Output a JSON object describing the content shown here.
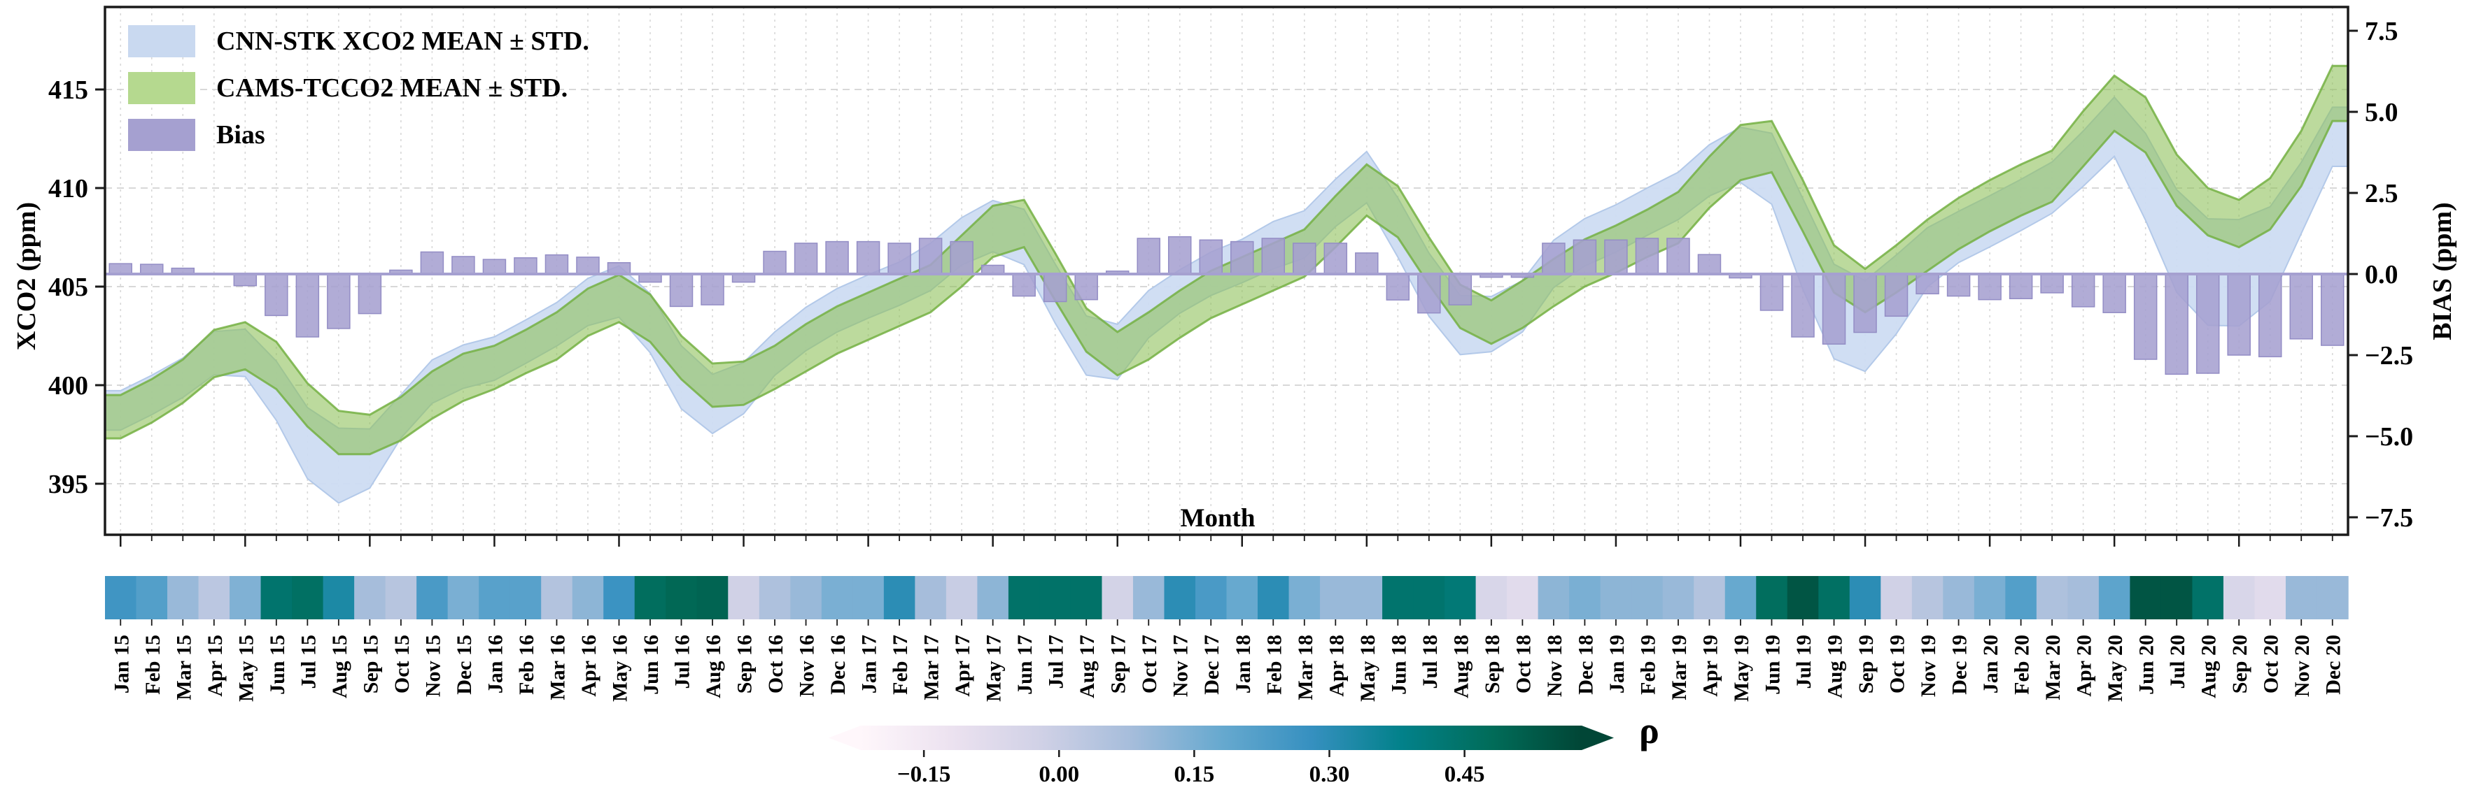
{
  "legend": {
    "items": [
      {
        "label": "CNN-STK XCO2 MEAN ± STD.",
        "swatch": "legend_cnn"
      },
      {
        "label": "CAMS-TCCO2 MEAN ± STD.",
        "swatch": "legend_cams"
      },
      {
        "label": "Bias",
        "swatch": "legend_bias"
      }
    ]
  },
  "chart_data": {
    "type": "area",
    "title": "",
    "xlabel": "Month",
    "ylabel_left": "XCO2 (ppm)",
    "ylabel_right": "BIAS (ppm)",
    "ylim_left": [
      392.4,
      419.2
    ],
    "ylim_right": [
      -8.0,
      8.2
    ],
    "grid": true,
    "legend_position": "upper left",
    "months": [
      "Jan 15",
      "Feb 15",
      "Mar 15",
      "Apr 15",
      "May 15",
      "Jun 15",
      "Jul 15",
      "Aug 15",
      "Sep 15",
      "Oct 15",
      "Nov 15",
      "Dec 15",
      "Jan 16",
      "Feb 16",
      "Mar 16",
      "Apr 16",
      "May 16",
      "Jun 16",
      "Jul 16",
      "Aug 16",
      "Sep 16",
      "Oct 16",
      "Nov 16",
      "Dec 16",
      "Jan 17",
      "Feb 17",
      "Mar 17",
      "Apr 17",
      "May 17",
      "Jun 17",
      "Jul 17",
      "Aug 17",
      "Sep 17",
      "Oct 17",
      "Nov 17",
      "Dec 17",
      "Jan 18",
      "Feb 18",
      "Mar 18",
      "Apr 18",
      "May 18",
      "Jun 18",
      "Jul 18",
      "Aug 18",
      "Sep 18",
      "Oct 18",
      "Nov 18",
      "Dec 18",
      "Jan 19",
      "Feb 19",
      "Mar 19",
      "Apr 19",
      "May 19",
      "Jun 19",
      "Jul 19",
      "Aug 19",
      "Sep 19",
      "Oct 19",
      "Nov 19",
      "Dec 19",
      "Jan 20",
      "Feb 20",
      "Mar 20",
      "Apr 20",
      "May 20",
      "Jun 20",
      "Jul 20",
      "Aug 20",
      "Sep 20",
      "Oct 20",
      "Nov 20",
      "Dec 20"
    ],
    "series": [
      {
        "name": "CNN-STK XCO2 MEAN ± STD.",
        "mean": [
          398.72,
          399.5,
          400.38,
          401.62,
          401.64,
          399.72,
          397.06,
          395.92,
          396.28,
          398.42,
          400.18,
          400.94,
          401.35,
          402.2,
          403.09,
          404.22,
          404.75,
          403.15,
          400.4,
          399.05,
          399.85,
          401.6,
          402.85,
          403.8,
          404.5,
          405.15,
          406.0,
          407.3,
          408.07,
          407.52,
          404.65,
          402.01,
          401.69,
          403.6,
          404.75,
          405.65,
          406.3,
          407.1,
          407.65,
          409.25,
          410.55,
          408.0,
          405.1,
          403.05,
          403.1,
          404.0,
          406.15,
          407.25,
          407.95,
          408.8,
          409.6,
          410.9,
          411.68,
          410.98,
          407.16,
          403.74,
          403.0,
          404.6,
          406.49,
          407.52,
          408.31,
          409.14,
          410.02,
          411.49,
          413.11,
          410.57,
          407.31,
          405.74,
          405.7,
          406.65,
          409.5,
          412.6
        ],
        "std": [
          1.0,
          1.0,
          1.0,
          1.1,
          1.2,
          1.5,
          1.8,
          1.9,
          1.5,
          1.1,
          1.1,
          1.1,
          1.1,
          1.1,
          1.1,
          1.2,
          1.3,
          1.5,
          1.6,
          1.5,
          1.3,
          1.1,
          1.1,
          1.1,
          1.1,
          1.1,
          1.2,
          1.2,
          1.3,
          1.4,
          1.5,
          1.5,
          1.4,
          1.2,
          1.1,
          1.1,
          1.1,
          1.2,
          1.2,
          1.2,
          1.3,
          1.5,
          1.6,
          1.5,
          1.4,
          1.3,
          1.2,
          1.2,
          1.2,
          1.2,
          1.2,
          1.3,
          1.4,
          1.8,
          2.3,
          2.4,
          2.3,
          2.0,
          1.5,
          1.3,
          1.3,
          1.3,
          1.3,
          1.4,
          1.5,
          2.2,
          2.6,
          2.7,
          2.7,
          2.4,
          1.8,
          1.5
        ]
      },
      {
        "name": "CAMS-TCCO2 MEAN ± STD.",
        "mean": [
          398.4,
          399.2,
          400.2,
          401.6,
          402.0,
          401.0,
          399.0,
          397.6,
          397.5,
          398.3,
          399.5,
          400.4,
          400.9,
          401.7,
          402.5,
          403.7,
          404.4,
          403.4,
          401.4,
          400.0,
          400.1,
          400.9,
          401.9,
          402.8,
          403.5,
          404.2,
          404.9,
          406.3,
          407.8,
          408.2,
          405.5,
          402.8,
          401.6,
          402.5,
          403.6,
          404.6,
          405.3,
          406.0,
          406.7,
          408.3,
          409.9,
          408.8,
          406.3,
          404.0,
          403.2,
          404.1,
          405.2,
          406.2,
          406.9,
          407.7,
          408.5,
          410.3,
          411.8,
          412.1,
          409.1,
          405.9,
          404.8,
          405.9,
          407.1,
          408.2,
          409.1,
          409.9,
          410.6,
          412.5,
          414.3,
          413.2,
          410.4,
          408.8,
          408.2,
          409.2,
          411.5,
          414.8
        ],
        "std": [
          1.1,
          1.1,
          1.1,
          1.2,
          1.2,
          1.2,
          1.1,
          1.1,
          1.0,
          1.1,
          1.2,
          1.2,
          1.1,
          1.1,
          1.2,
          1.2,
          1.2,
          1.2,
          1.1,
          1.1,
          1.1,
          1.1,
          1.2,
          1.2,
          1.2,
          1.2,
          1.2,
          1.3,
          1.3,
          1.2,
          1.2,
          1.1,
          1.1,
          1.2,
          1.2,
          1.2,
          1.2,
          1.2,
          1.2,
          1.3,
          1.3,
          1.3,
          1.2,
          1.1,
          1.1,
          1.2,
          1.2,
          1.2,
          1.2,
          1.2,
          1.3,
          1.3,
          1.4,
          1.3,
          1.3,
          1.2,
          1.1,
          1.2,
          1.3,
          1.3,
          1.3,
          1.3,
          1.3,
          1.4,
          1.4,
          1.4,
          1.3,
          1.2,
          1.2,
          1.3,
          1.4,
          1.4
        ]
      },
      {
        "name": "Bias",
        "values": [
          0.32,
          0.3,
          0.18,
          0.02,
          -0.36,
          -1.28,
          -1.94,
          -1.68,
          -1.22,
          0.12,
          0.68,
          0.54,
          0.45,
          0.5,
          0.59,
          0.52,
          0.35,
          -0.25,
          -1.0,
          -0.95,
          -0.25,
          0.7,
          0.95,
          1.0,
          1.0,
          0.95,
          1.1,
          1.0,
          0.27,
          -0.68,
          -0.85,
          -0.79,
          0.09,
          1.1,
          1.15,
          1.05,
          1.0,
          1.1,
          0.95,
          0.95,
          0.65,
          -0.8,
          -1.2,
          -0.95,
          -0.1,
          -0.1,
          0.95,
          1.05,
          1.05,
          1.1,
          1.1,
          0.6,
          -0.12,
          -1.12,
          -1.94,
          -2.16,
          -1.8,
          -1.3,
          -0.61,
          -0.68,
          -0.79,
          -0.76,
          -0.58,
          -1.01,
          -1.19,
          -2.63,
          -3.09,
          -3.06,
          -2.5,
          -2.55,
          -2.0,
          -2.2
        ]
      }
    ],
    "axes": {
      "y_left": {
        "tick_labels": [
          "415",
          "410",
          "405",
          "400",
          "395"
        ],
        "tick_values": [
          415,
          410,
          405,
          400,
          395
        ]
      },
      "y_right": {
        "tick_labels": [
          "7.5",
          "5.0",
          "2.5",
          "0.0",
          "−2.5",
          "−5.0",
          "−7.5"
        ],
        "tick_values": [
          7.5,
          5.0,
          2.5,
          0.0,
          -2.5,
          -5.0,
          -7.5
        ]
      }
    },
    "rho": {
      "label": "ρ",
      "values": [
        0.26,
        0.22,
        0.1,
        0.03,
        0.14,
        0.44,
        0.46,
        0.33,
        0.08,
        0.04,
        0.24,
        0.15,
        0.21,
        0.21,
        0.05,
        0.12,
        0.27,
        0.47,
        0.49,
        0.5,
        -0.02,
        0.06,
        0.1,
        0.15,
        0.15,
        0.3,
        0.08,
        0.0,
        0.12,
        0.45,
        0.45,
        0.45,
        -0.03,
        0.1,
        0.3,
        0.24,
        0.18,
        0.3,
        0.15,
        0.1,
        0.1,
        0.44,
        0.44,
        0.42,
        -0.05,
        -0.08,
        0.12,
        0.15,
        0.12,
        0.12,
        0.1,
        0.05,
        0.18,
        0.47,
        0.54,
        0.46,
        0.3,
        -0.02,
        0.04,
        0.1,
        0.15,
        0.22,
        0.06,
        0.08,
        0.2,
        0.54,
        0.54,
        0.45,
        -0.05,
        -0.08,
        0.1,
        0.1
      ],
      "vmin": -0.22,
      "vmax": 0.58,
      "colormap": [
        "#fff7fb",
        "#ece2f0",
        "#d0d1e6",
        "#a6bddb",
        "#67a9cf",
        "#3690c0",
        "#02818a",
        "#016c59",
        "#014636"
      ],
      "tick_labels": [
        "−0.15",
        "0.00",
        "0.15",
        "0.30",
        "0.45"
      ],
      "tick_values": [
        -0.15,
        0.0,
        0.15,
        0.3,
        0.45
      ]
    },
    "colors": {
      "cnn_fill": "#cedcf2",
      "cnn_edge": "#b3c9e9",
      "cams_fill": "#8fc25c",
      "cams_edge": "#74b043",
      "bias_fill": "#a5a0d0",
      "bias_edge": "#938dc5",
      "legend_cnn": "#c9d9f0",
      "legend_cams": "#b5d98f",
      "legend_bias": "#a5a0d0",
      "axis": "#1a1a1a",
      "grid": "#d8d8d8"
    }
  },
  "labels": {
    "xlabel": "Month",
    "ylabel_left": "XCO2 (ppm)",
    "ylabel_right": "BIAS (ppm)",
    "rho": "ρ"
  }
}
